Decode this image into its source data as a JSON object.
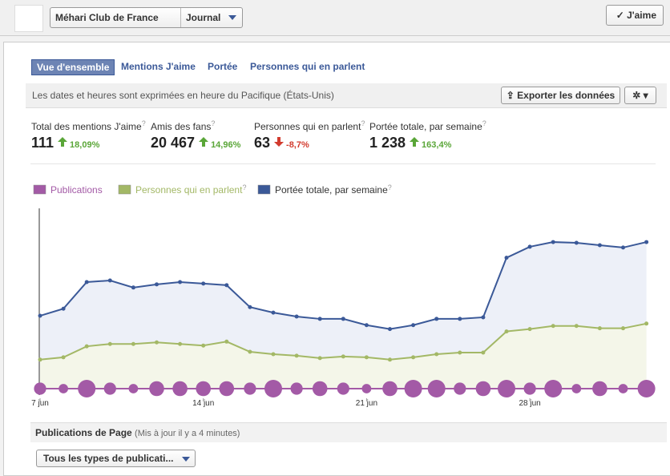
{
  "header": {
    "page_name": "Méhari Club de France",
    "view": "Journal",
    "like_button": "J'aime"
  },
  "help": "?",
  "tabs": [
    "Vue d'ensemble",
    "Mentions J'aime",
    "Portée",
    "Personnes qui en parlent"
  ],
  "info": {
    "text": "Les dates et heures sont exprimées en heure du Pacifique (États-Unis)",
    "export": "Exporter les données"
  },
  "stats": [
    {
      "label": "Total des mentions J'aime",
      "value": "111",
      "change": "18,09%",
      "direction": "up"
    },
    {
      "label": "Amis des fans",
      "value": "20 467",
      "change": "14,96%",
      "direction": "up"
    },
    {
      "label": "Personnes qui en parlent",
      "value": "63",
      "change": "-8,7%",
      "direction": "down"
    },
    {
      "label": "Portée totale, par semaine",
      "value": "1 238",
      "change": "163,4%",
      "direction": "up"
    }
  ],
  "chart_data": {
    "type": "line",
    "categories": [
      "7 jun",
      null,
      null,
      null,
      null,
      null,
      null,
      "14 jun",
      null,
      null,
      null,
      null,
      null,
      null,
      "21 jun",
      null,
      null,
      null,
      null,
      null,
      null,
      "28 jun",
      null,
      null,
      null,
      null,
      null
    ],
    "ylim": [
      0,
      230
    ],
    "series": [
      {
        "name": "Publications",
        "color": "#a35aa6",
        "values": [
          2,
          1,
          4,
          2,
          1,
          3,
          3,
          3,
          3,
          2,
          4,
          2,
          3,
          2,
          1,
          3,
          4,
          4,
          2,
          3,
          4,
          2,
          4,
          1,
          3,
          1,
          4
        ]
      },
      {
        "name": "Personnes qui en parlent",
        "color": "#a3b866",
        "values": [
          37,
          40,
          54,
          57,
          57,
          59,
          57,
          55,
          60,
          47,
          44,
          42,
          39,
          41,
          40,
          37,
          40,
          44,
          46,
          46,
          73,
          76,
          80,
          80,
          77,
          77,
          83
        ]
      },
      {
        "name": "Portée totale, par semaine",
        "color": "#3b5998",
        "values": [
          93,
          102,
          136,
          138,
          129,
          133,
          136,
          134,
          132,
          104,
          97,
          92,
          89,
          89,
          81,
          76,
          81,
          89,
          89,
          91,
          167,
          181,
          187,
          186,
          183,
          180,
          187
        ]
      }
    ]
  },
  "posts": {
    "title": "Publications de Page",
    "updated": "(Mis à jour il y a 4 minutes)",
    "filter": "Tous les types de publicati..."
  }
}
